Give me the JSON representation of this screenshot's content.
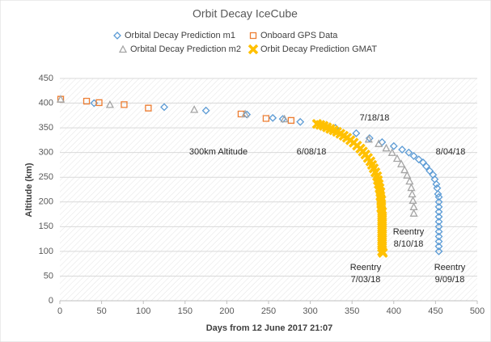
{
  "chart_data": {
    "type": "scatter",
    "title": "Orbit Decay IceCube",
    "xlabel": "Days from 12 June 2017 21:07",
    "ylabel": "Altitude (km)",
    "xlim": [
      0,
      500
    ],
    "xticks": [
      0,
      50,
      100,
      150,
      200,
      250,
      300,
      350,
      400,
      450,
      500
    ],
    "ylim": [
      0,
      450
    ],
    "yticks": [
      0,
      50,
      100,
      150,
      200,
      250,
      300,
      350,
      400,
      450
    ],
    "grid": true,
    "series": [
      {
        "name": "Orbital Decay Prediction m1",
        "color": "#5b9bd5",
        "marker": "diamond",
        "x": [
          41,
          125,
          175,
          224,
          255,
          267,
          288,
          330,
          355,
          371,
          386,
          400,
          410,
          418,
          424,
          430,
          435,
          439,
          443,
          447,
          449,
          451,
          452,
          453,
          454,
          454,
          454,
          454,
          454,
          454,
          454,
          454,
          454,
          454,
          454,
          454
        ],
        "values": [
          400,
          392,
          385,
          377,
          370,
          368,
          362,
          350,
          339,
          329,
          321,
          313,
          306,
          300,
          293,
          286,
          280,
          272,
          263,
          255,
          246,
          236,
          228,
          216,
          210,
          200,
          190,
          180,
          170,
          160,
          150,
          140,
          130,
          120,
          110,
          100
        ]
      },
      {
        "name": "Onboard GPS Data",
        "color": "#ed7d31",
        "marker": "square",
        "x": [
          1,
          32,
          47,
          77,
          106,
          217,
          247,
          277
        ],
        "values": [
          408,
          404,
          401,
          397,
          390,
          378,
          369,
          365
        ]
      },
      {
        "name": "Orbital Decay Prediction m2",
        "color": "#a5a5a5",
        "marker": "triangle",
        "x": [
          1,
          60,
          161,
          222,
          269,
          370,
          382,
          391,
          398,
          404,
          409,
          413,
          416,
          419,
          421,
          422,
          423,
          424,
          424
        ],
        "values": [
          408,
          397,
          387,
          378,
          368,
          327,
          318,
          309,
          300,
          288,
          277,
          265,
          254,
          242,
          229,
          216,
          203,
          190,
          177
        ]
      },
      {
        "name": "Orbit Decay Prediction GMAT",
        "color": "#ffc000",
        "marker": "x",
        "x": [
          308,
          312,
          316,
          320,
          324,
          328,
          332,
          336,
          340,
          344,
          348,
          352,
          356,
          360,
          363,
          366,
          369,
          372,
          374,
          376,
          378,
          380,
          381,
          382,
          383,
          384,
          384,
          385,
          385,
          385,
          386,
          386,
          386,
          386,
          386,
          386,
          386,
          386,
          386,
          386,
          386,
          387
        ],
        "values": [
          358,
          356,
          354,
          351,
          348,
          345,
          342,
          338,
          334,
          330,
          325,
          320,
          314,
          308,
          302,
          296,
          289,
          282,
          275,
          268,
          260,
          252,
          244,
          236,
          228,
          220,
          212,
          204,
          196,
          188,
          180,
          172,
          164,
          156,
          148,
          140,
          132,
          124,
          116,
          108,
          100,
          97
        ]
      }
    ],
    "annotations": [
      {
        "lines": [
          "7/18/18"
        ]
      },
      {
        "lines": [
          "300km Altitude"
        ]
      },
      {
        "lines": [
          "6/08/18"
        ]
      },
      {
        "lines": [
          "8/04/18"
        ]
      },
      {
        "lines": [
          "Reentry",
          "8/10/18"
        ]
      },
      {
        "lines": [
          "Reentry",
          "7/03/18"
        ]
      },
      {
        "lines": [
          "Reentry",
          "9/09/18"
        ]
      }
    ]
  }
}
